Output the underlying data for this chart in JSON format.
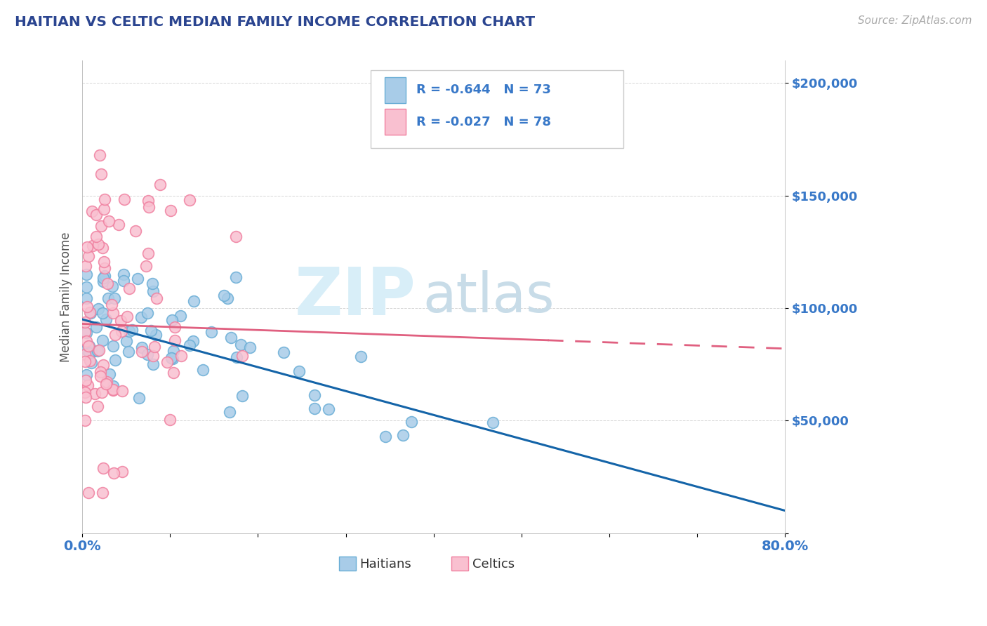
{
  "title": "HAITIAN VS CELTIC MEDIAN FAMILY INCOME CORRELATION CHART",
  "source": "Source: ZipAtlas.com",
  "ylabel": "Median Family Income",
  "xlim": [
    0.0,
    0.8
  ],
  "ylim": [
    0,
    210000
  ],
  "R1": -0.644,
  "N1": 73,
  "R2": -0.027,
  "N2": 78,
  "color_haitian_face": "#a8cce8",
  "color_haitian_edge": "#6aaed6",
  "color_celtic_face": "#f9c0d0",
  "color_celtic_edge": "#f080a0",
  "color_haitian_line": "#1464a8",
  "color_celtic_line": "#e06080",
  "title_color": "#2b4590",
  "source_color": "#aaaaaa",
  "axis_tick_color": "#3878c8",
  "ylabel_color": "#555555",
  "background_color": "#ffffff",
  "watermark_zip_color": "#d8eef8",
  "watermark_atlas_color": "#c8dce8",
  "grid_color": "#cccccc",
  "legend_sublabel1": "Haitians",
  "legend_sublabel2": "Celtics",
  "legend_box_color": "#ffffff",
  "legend_border_color": "#cccccc",
  "legend_text_color": "#3878c8"
}
